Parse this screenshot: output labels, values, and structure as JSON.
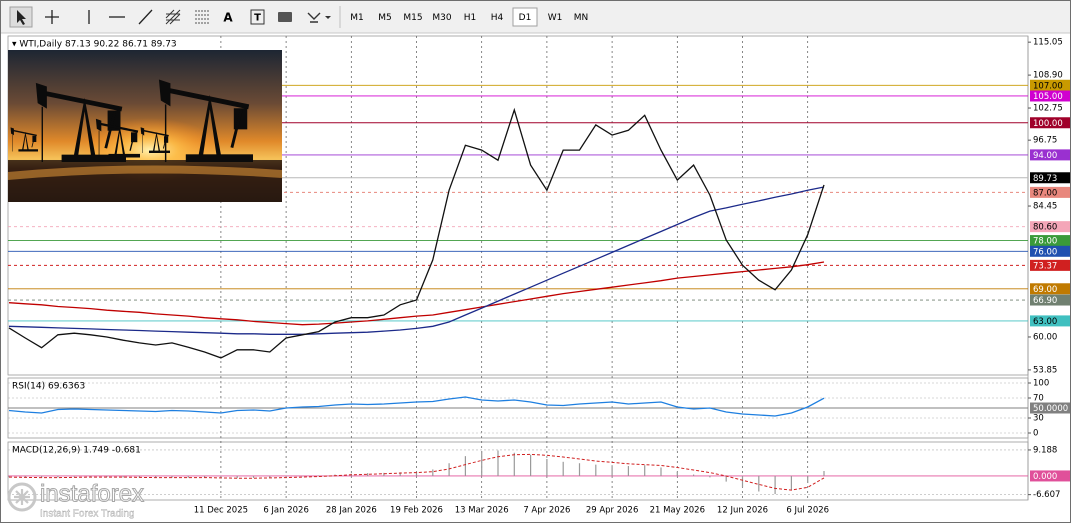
{
  "toolbar": {
    "tools": [
      "A",
      "T"
    ],
    "timeframes": [
      "M1",
      "M5",
      "M15",
      "M30",
      "H1",
      "H4",
      "D1",
      "W1",
      "MN"
    ],
    "active": "D1"
  },
  "chart_data": [
    {
      "type": "line",
      "title": "WTI,Daily",
      "ohlc": [
        87.13,
        90.22,
        86.71,
        89.73
      ],
      "ylim": [
        52.9,
        116.2
      ],
      "yticks": [
        115.05,
        {
          "value": 108.9,
          "label": "108.90"
        },
        102.75,
        96.75,
        84.45,
        {
          "value": 60,
          "label": "60.00"
        },
        53.85
      ],
      "levels": [
        {
          "value": 107,
          "label": "107.00",
          "color": "#c99a00"
        },
        {
          "value": 105,
          "label": "105.00",
          "color": "#d000d0"
        },
        {
          "value": 100,
          "label": "100.00",
          "color": "#a0002a"
        },
        {
          "value": 94,
          "label": "94.00",
          "color": "#9a30d0"
        },
        {
          "value": 89.73,
          "label": "89.73",
          "color": "#000000",
          "line_color": "#b8b8b8"
        },
        {
          "value": 87,
          "label": "87.00",
          "color": "#e8877d",
          "dashed": true
        },
        {
          "value": 80.6,
          "label": "80.60",
          "color": "#f4a6b8",
          "dashed": true
        },
        {
          "value": 78,
          "label": "78.00",
          "color": "#3a9a3a"
        },
        {
          "value": 76,
          "label": "76.00",
          "color": "#2050b0"
        },
        {
          "value": 73.37,
          "label": "73.37",
          "color": "#d02020",
          "dashed": true
        },
        {
          "value": 69,
          "label": "69.00",
          "color": "#c07a00"
        },
        {
          "value": 66.9,
          "label": "66.90",
          "color": "#708070",
          "dashed": true
        },
        {
          "value": 63,
          "label": "63.00",
          "color": "#40c0c0"
        }
      ],
      "series": [
        {
          "color": "#c00000",
          "values": [
            66.4,
            66.2,
            66.0,
            65.7,
            65.5,
            65.3,
            65.0,
            64.8,
            64.6,
            64.3,
            64.1,
            63.9,
            63.6,
            63.4,
            63.2,
            62.9,
            62.7,
            62.5,
            62.3,
            62.4,
            62.6,
            62.8,
            63.0,
            63.3,
            63.6,
            63.9,
            64.1,
            64.6,
            65.1,
            65.6,
            66.1,
            66.6,
            67.1,
            67.6,
            68.1,
            68.5,
            68.9,
            69.3,
            69.7,
            70.1,
            70.5,
            71.0,
            71.3,
            71.6,
            71.9,
            72.2,
            72.5,
            72.8,
            73.1,
            73.5,
            74.0
          ]
        },
        {
          "color": "#1c2a8a",
          "values": [
            62.0,
            61.9,
            61.8,
            61.7,
            61.6,
            61.5,
            61.4,
            61.3,
            61.2,
            61.1,
            61.0,
            60.9,
            60.8,
            60.7,
            60.6,
            60.6,
            60.5,
            60.5,
            60.5,
            60.6,
            60.7,
            60.8,
            60.9,
            61.1,
            61.3,
            61.6,
            62.0,
            62.8,
            64.1,
            65.4,
            66.7,
            68.0,
            69.3,
            70.6,
            71.9,
            73.2,
            74.5,
            75.8,
            77.1,
            78.4,
            79.7,
            81.0,
            82.3,
            83.5,
            84.1,
            84.8,
            85.4,
            86.1,
            86.7,
            87.4,
            88.0
          ]
        },
        {
          "color": "#111111",
          "values": [
            61.7,
            59.8,
            58.0,
            60.4,
            60.7,
            60.4,
            60.0,
            59.4,
            58.9,
            58.5,
            58.9,
            58.1,
            57.2,
            56.1,
            57.6,
            57.6,
            57.2,
            59.8,
            60.4,
            61.0,
            62.8,
            63.6,
            63.6,
            64.1,
            66.0,
            66.9,
            74.4,
            87.4,
            95.8,
            94.9,
            93.0,
            102.4,
            92.1,
            87.4,
            94.9,
            94.9,
            99.6,
            97.7,
            98.6,
            101.4,
            94.9,
            89.3,
            92.1,
            86.5,
            78.1,
            73.4,
            70.6,
            68.8,
            72.5,
            79.1,
            88.4
          ]
        }
      ]
    },
    {
      "type": "line",
      "title": "RSI(14)",
      "reading": 69.6363,
      "ylim": [
        -10,
        110
      ],
      "yticks": [
        100,
        70,
        30,
        0
      ],
      "levels": [
        {
          "value": 50,
          "label": "50.0000",
          "color": "#808080"
        }
      ],
      "series": [
        {
          "color": "#1e7fe0",
          "values": [
            45,
            42,
            40,
            47,
            48,
            47,
            46,
            45,
            44,
            43,
            45,
            44,
            42,
            40,
            45,
            46,
            44,
            50,
            52,
            53,
            56,
            58,
            57,
            58,
            60,
            62,
            63,
            68,
            72,
            66,
            64,
            66,
            62,
            56,
            55,
            58,
            60,
            62,
            58,
            60,
            62,
            52,
            48,
            50,
            42,
            38,
            36,
            34,
            40,
            52,
            69.6363
          ]
        }
      ]
    },
    {
      "type": "bar",
      "title": "MACD(12,26,9)",
      "readings": [
        1.749,
        -0.681
      ],
      "ylim": [
        -8.5,
        12
      ],
      "yticks": [
        9.188,
        -6.607
      ],
      "levels": [
        {
          "value": 0,
          "label": "0.000",
          "color": "#e0509a"
        }
      ],
      "categories": [
        null,
        null,
        null,
        null,
        null,
        null,
        null,
        null,
        null,
        null,
        null,
        null,
        null,
        "11 Dec 2025",
        null,
        null,
        null,
        "6 Jan 2026",
        null,
        null,
        null,
        "28 Jan 2026",
        null,
        null,
        null,
        "19 Feb 2026",
        null,
        null,
        null,
        "13 Mar 2026",
        null,
        null,
        null,
        "7 Apr 2026",
        null,
        null,
        null,
        "29 Apr 2026",
        null,
        null,
        null,
        "21 May 2026",
        null,
        null,
        null,
        "12 Jun 2026",
        null,
        null,
        null,
        "6 Jul 2026",
        null
      ],
      "grid": true,
      "series": [
        {
          "color": "#9a9a9a",
          "values": [
            -0.5,
            -0.6,
            -0.7,
            -0.5,
            -0.3,
            -0.3,
            -0.4,
            -0.5,
            -0.6,
            -0.7,
            -0.6,
            -0.6,
            -0.7,
            -0.9,
            -0.8,
            -0.7,
            -0.7,
            -0.4,
            -0.1,
            0.2,
            0.5,
            0.8,
            1.0,
            1.1,
            1.3,
            1.5,
            2.3,
            4.5,
            7.0,
            8.8,
            9.0,
            8.2,
            7.5,
            6.0,
            5.0,
            4.5,
            4.0,
            3.8,
            3.5,
            3.8,
            3.0,
            1.5,
            0.5,
            -0.5,
            -2.0,
            -4.0,
            -5.5,
            -6.4,
            -5.0,
            -2.5,
            1.749
          ]
        },
        {
          "color": "#d02020",
          "style": "dashed",
          "values": [
            -0.4,
            -0.5,
            -0.6,
            -0.6,
            -0.5,
            -0.4,
            -0.4,
            -0.4,
            -0.5,
            -0.6,
            -0.6,
            -0.6,
            -0.6,
            -0.7,
            -0.8,
            -0.8,
            -0.7,
            -0.6,
            -0.4,
            -0.2,
            0.1,
            0.4,
            0.6,
            0.8,
            1.0,
            1.2,
            1.5,
            2.5,
            4.0,
            5.5,
            6.8,
            7.5,
            7.6,
            7.3,
            6.7,
            6.0,
            5.3,
            4.8,
            4.3,
            4.0,
            3.7,
            3.0,
            2.1,
            1.2,
            0.0,
            -1.5,
            -3.0,
            -4.4,
            -5.0,
            -4.0,
            -0.681
          ]
        }
      ]
    }
  ],
  "watermark": {
    "brand": "instaforex",
    "slogan": "Instant Forex Trading"
  }
}
